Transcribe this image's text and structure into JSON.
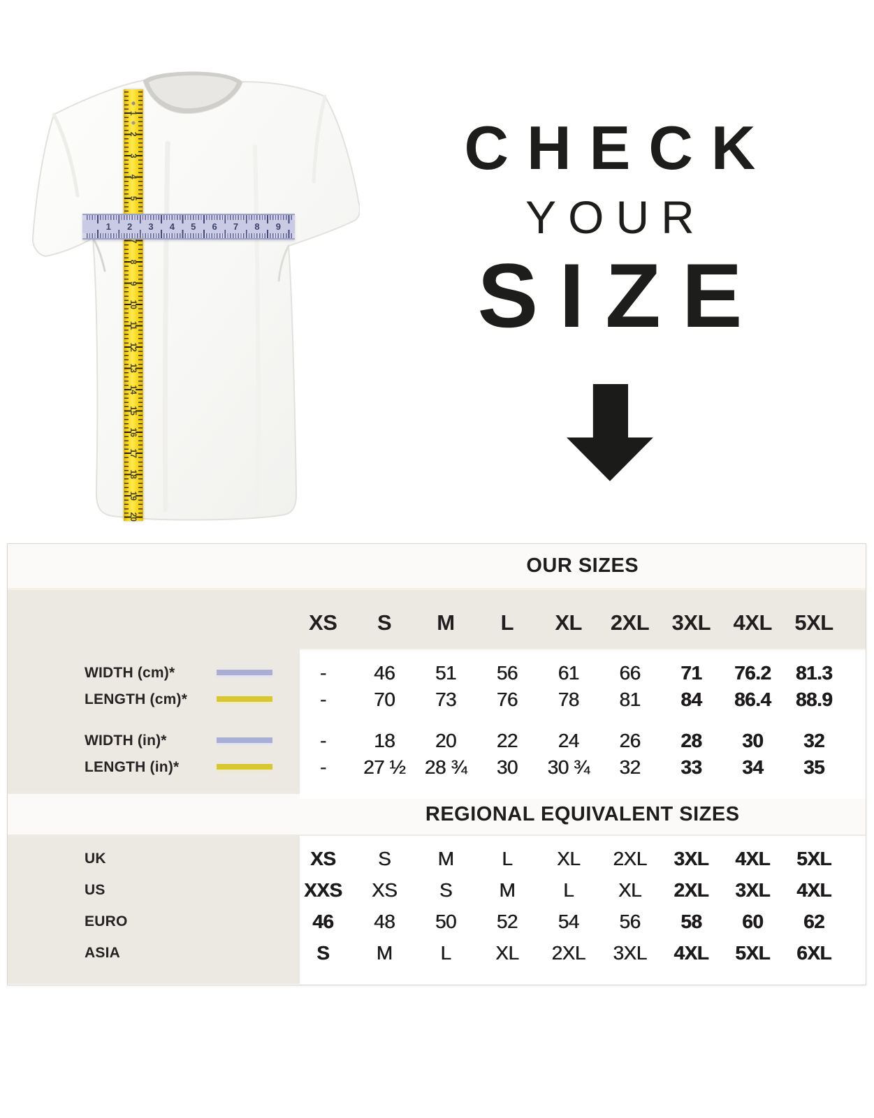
{
  "hero": {
    "title_line1": "CHECK",
    "title_line2": "YOUR",
    "title_line3": "SIZE",
    "tape_numbers": [
      "1",
      "2",
      "3",
      "4",
      "5",
      "6",
      "7",
      "8",
      "9",
      "10",
      "11",
      "12",
      "13",
      "14",
      "15",
      "16",
      "17",
      "18",
      "19",
      "20"
    ],
    "ruler_numbers": [
      "1",
      "2",
      "3",
      "4",
      "5",
      "6",
      "7",
      "8",
      "9"
    ]
  },
  "table": {
    "our_sizes_header": "OUR SIZES",
    "size_columns": [
      "XS",
      "S",
      "M",
      "L",
      "XL",
      "2XL",
      "3XL",
      "4XL",
      "5XL"
    ],
    "measurements": [
      {
        "label": "WIDTH (cm)*",
        "swatch": "width",
        "values": [
          "-",
          "46",
          "51",
          "56",
          "61",
          "66",
          "71",
          "76.2",
          "81.3"
        ]
      },
      {
        "label": "LENGTH (cm)*",
        "swatch": "length",
        "values": [
          "-",
          "70",
          "73",
          "76",
          "78",
          "81",
          "84",
          "86.4",
          "88.9"
        ]
      },
      {
        "label": "WIDTH (in)*",
        "swatch": "width",
        "values": [
          "-",
          "18",
          "20",
          "22",
          "24",
          "26",
          "28",
          "30",
          "32"
        ]
      },
      {
        "label": "LENGTH (in)*",
        "swatch": "length",
        "values": [
          "-",
          "27 ½",
          "28 ¾",
          "30",
          "30 ¾",
          "32",
          "33",
          "34",
          "35"
        ]
      }
    ],
    "regional_header": "REGIONAL EQUIVALENT SIZES",
    "regional": [
      {
        "label": "UK",
        "values": [
          "XS",
          "S",
          "M",
          "L",
          "XL",
          "2XL",
          "3XL",
          "4XL",
          "5XL"
        ]
      },
      {
        "label": "US",
        "values": [
          "XXS",
          "XS",
          "S",
          "M",
          "L",
          "XL",
          "2XL",
          "3XL",
          "4XL"
        ]
      },
      {
        "label": "EURO",
        "values": [
          "46",
          "48",
          "50",
          "52",
          "54",
          "56",
          "58",
          "60",
          "62"
        ]
      },
      {
        "label": "ASIA",
        "values": [
          "S",
          "M",
          "L",
          "XL",
          "2XL",
          "3XL",
          "4XL",
          "5XL",
          "6XL"
        ]
      }
    ]
  },
  "colors": {
    "tape_yellow": "#f6d51c",
    "ruler_lavender": "#c9cbe4",
    "swatch_width_lavender": "#a8aed4",
    "swatch_length_yellow": "#d9c72f",
    "panel_beige": "#ece8e2",
    "band_white": "#fbfaf9",
    "text_dark": "#211e1f"
  }
}
